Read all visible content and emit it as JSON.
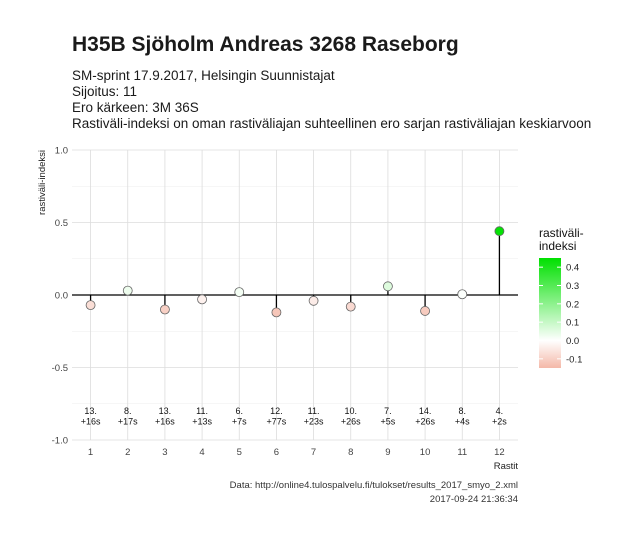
{
  "header": {
    "title": "H35B Sjöholm Andreas 3268 Raseborg",
    "subtitle_lines": [
      "SM-sprint 17.9.2017, Helsingin Suunnistajat",
      "Sijoitus: 11",
      "Ero kärkeen: 3M 36S",
      "Rastiväli-indeksi on oman rastiväliajan suhteellinen ero sarjan rastiväliajan keskiarvoon"
    ]
  },
  "caption": {
    "source": "Data: http://online4.tulospalvelu.fi/tulokset/results_2017_smyo_2.xml",
    "timestamp": "2017-09-24 21:36:34"
  },
  "chart_data": {
    "type": "scatter",
    "xlabel": "Rastit",
    "ylabel": "rastiväli-indeksi",
    "x": [
      1,
      2,
      3,
      4,
      5,
      6,
      7,
      8,
      9,
      10,
      11,
      12
    ],
    "y": [
      -0.07,
      0.03,
      -0.1,
      -0.03,
      0.02,
      -0.12,
      -0.04,
      -0.08,
      0.06,
      -0.11,
      0.005,
      0.44
    ],
    "point_labels": [
      "13.\n+16s",
      "8.\n+17s",
      "13.\n+16s",
      "11.\n+13s",
      "6.\n+7s",
      "12.\n+77s",
      "11.\n+23s",
      "10.\n+26s",
      "7.\n+5s",
      "14.\n+26s",
      "8.\n+4s",
      "4.\n+2s"
    ],
    "xlim": [
      0.5,
      12.5
    ],
    "ylim": [
      -1.0,
      1.0
    ],
    "yticks": [
      -1.0,
      -0.5,
      0.0,
      0.5,
      1.0
    ],
    "ytick_labels": [
      "-1.0",
      "-0.5",
      "0.0",
      "0.5",
      "1.0"
    ],
    "xticks": [
      1,
      2,
      3,
      4,
      5,
      6,
      7,
      8,
      9,
      10,
      11,
      12
    ],
    "grid": true,
    "legend": {
      "title": "rastiväli-\nindeksi",
      "placement": "right",
      "range": [
        -0.15,
        0.45
      ],
      "ticks": [
        0.4,
        0.3,
        0.2,
        0.1,
        0.0,
        -0.1
      ],
      "tick_labels": [
        "0.4",
        "0.3",
        "0.2",
        "0.1",
        "0.0",
        "-0.1"
      ],
      "color_low": "#f4b8a8",
      "color_mid": "#ffffff",
      "color_high": "#00e000"
    }
  }
}
